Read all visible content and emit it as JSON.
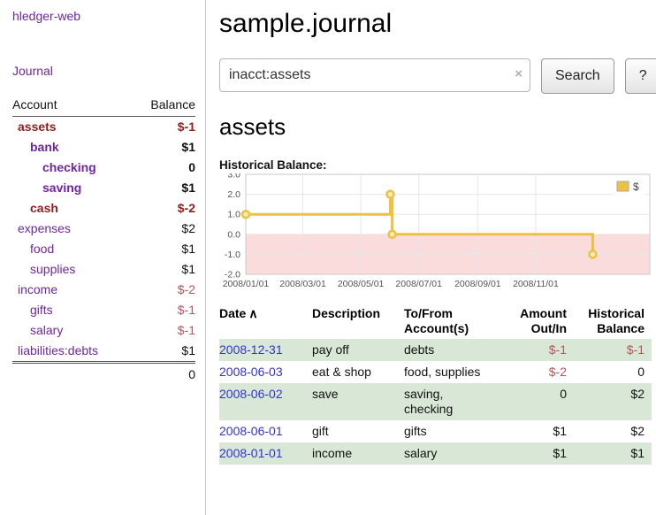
{
  "theme": {
    "link_purple": "#6f26a0",
    "date_blue": "#3333cc",
    "negative_dark": "#8f1f1f",
    "negative_light": "#b4555f",
    "row_green": "#d9e8d6",
    "chart_gold": "#edc240",
    "chart_negative_bg": "#fbdcdc"
  },
  "sidebar": {
    "brand": "hledger-web",
    "nav": {
      "journal": "Journal"
    },
    "accounts_table": {
      "col_account": "Account",
      "col_balance": "Balance",
      "rows": [
        {
          "name": "assets",
          "level": 0,
          "bold": true,
          "name_negative": true,
          "balance": "$-1",
          "balance_negative": true
        },
        {
          "name": "bank",
          "level": 1,
          "bold": true,
          "name_negative": false,
          "balance": "$1",
          "balance_negative": false
        },
        {
          "name": "checking",
          "level": 2,
          "bold": true,
          "name_negative": false,
          "balance": "0",
          "balance_negative": false
        },
        {
          "name": "saving",
          "level": 2,
          "bold": true,
          "name_negative": false,
          "balance": "$1",
          "balance_negative": false
        },
        {
          "name": "cash",
          "level": 1,
          "bold": true,
          "name_negative": true,
          "balance": "$-2",
          "balance_negative": true
        },
        {
          "name": "expenses",
          "level": 0,
          "bold": false,
          "name_negative": false,
          "balance": "$2",
          "balance_negative": false
        },
        {
          "name": "food",
          "level": 1,
          "bold": false,
          "name_negative": false,
          "balance": "$1",
          "balance_negative": false
        },
        {
          "name": "supplies",
          "level": 1,
          "bold": false,
          "name_negative": false,
          "balance": "$1",
          "balance_negative": false
        },
        {
          "name": "income",
          "level": 0,
          "bold": false,
          "name_negative": false,
          "balance": "$-2",
          "balance_negative": true
        },
        {
          "name": "gifts",
          "level": 1,
          "bold": false,
          "name_negative": false,
          "balance": "$-1",
          "balance_negative": true
        },
        {
          "name": "salary",
          "level": 1,
          "bold": false,
          "name_negative": false,
          "balance": "$-1",
          "balance_negative": true
        },
        {
          "name": "liabilities:debts",
          "level": 0,
          "bold": false,
          "name_negative": false,
          "balance": "$1",
          "balance_negative": false
        }
      ],
      "total": "0"
    }
  },
  "main": {
    "title": "sample.journal",
    "search": {
      "value": "inacct:assets",
      "clear_icon": "×",
      "button_label": "Search",
      "help_label": "?"
    },
    "account_heading": "assets",
    "chart_title": "Historical Balance:"
  },
  "chart_data": {
    "type": "line",
    "step": true,
    "title": "Historical Balance",
    "series": [
      {
        "name": "$",
        "color": "#edc240",
        "points": [
          [
            "2008-01-01",
            1
          ],
          [
            "2008-06-01",
            2
          ],
          [
            "2008-06-03",
            0
          ],
          [
            "2008-12-31",
            -1
          ]
        ]
      }
    ],
    "ylim": [
      -2,
      3
    ],
    "yticks": [
      3,
      2,
      1,
      0,
      -1,
      -2
    ],
    "xlim": [
      "2008-01-01",
      "2009-03-01"
    ],
    "xticks": [
      "2008/01/01",
      "2008/03/01",
      "2008/05/01",
      "2008/07/01",
      "2008/09/01",
      "2008/11/01"
    ],
    "legend_position": "top-right",
    "negative_region_color": "#fbdcdc",
    "grid": true
  },
  "register": {
    "headers": {
      "date": "Date",
      "sort_icon": "∧",
      "description": "Description",
      "tofrom_line1": "To/From",
      "tofrom_line2": "Account(s)",
      "amount_line1": "Amount",
      "amount_line2": "Out/In",
      "balance_line1": "Historical",
      "balance_line2": "Balance"
    },
    "rows": [
      {
        "date": "2008-12-31",
        "description": "pay off",
        "accounts": "debts",
        "amount": "$-1",
        "amount_negative": true,
        "balance": "$-1",
        "balance_negative": true
      },
      {
        "date": "2008-06-03",
        "description": "eat & shop",
        "accounts": "food, supplies",
        "amount": "$-2",
        "amount_negative": true,
        "balance": "0",
        "balance_negative": false
      },
      {
        "date": "2008-06-02",
        "description": "save",
        "accounts": "saving, checking",
        "amount": "0",
        "amount_negative": false,
        "balance": "$2",
        "balance_negative": false
      },
      {
        "date": "2008-06-01",
        "description": "gift",
        "accounts": "gifts",
        "amount": "$1",
        "amount_negative": false,
        "balance": "$2",
        "balance_negative": false
      },
      {
        "date": "2008-01-01",
        "description": "income",
        "accounts": "salary",
        "amount": "$1",
        "amount_negative": false,
        "balance": "$1",
        "balance_negative": false
      }
    ]
  }
}
